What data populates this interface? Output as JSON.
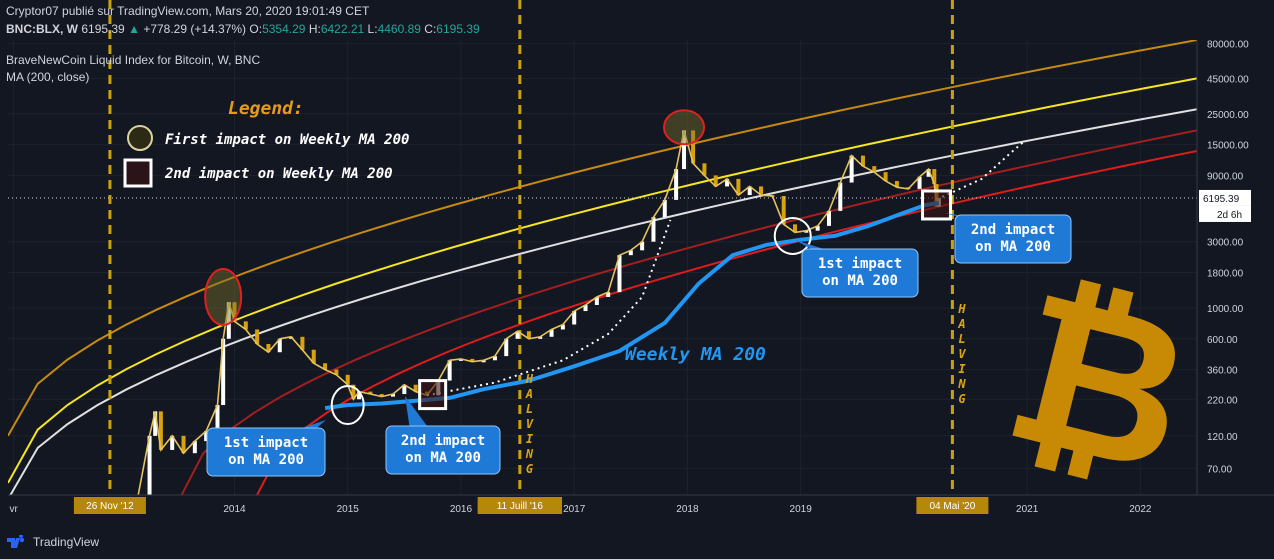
{
  "header": {
    "publish_line": "Cryptor07 publié sur TradingView.com, Mars 20, 2020 19:01:49 CET",
    "symbol": "BNC:BLX, W",
    "last": "6195.39",
    "change": "+778.29 (+14.37%)",
    "o_label": "O:",
    "o_val": "5354.29",
    "h_label": "H:",
    "h_val": "6422.21",
    "l_label": "L:",
    "l_val": "4460.89",
    "c_label": "C:",
    "c_val": "6195.39",
    "index_name": "BraveNewCoin Liquid Index for Bitcoin, W, BNC",
    "indicator": "MA (200, close)"
  },
  "legend": {
    "title": "Legend:",
    "first": "First impact on Weekly MA 200",
    "second": "2nd impact on Weekly MA 200"
  },
  "annotations": {
    "ma_label": "Weekly MA 200",
    "impact1a": [
      "1st impact",
      "on MA 200"
    ],
    "impact2a": [
      "2nd impact",
      "on MA 200"
    ],
    "impact1b": [
      "1st impact",
      "on MA 200"
    ],
    "impact2b": [
      "2nd impact",
      "on MA 200"
    ],
    "halving": "HALVING",
    "price_tag": "6195.39",
    "countdown": "2d 6h"
  },
  "footer": {
    "brand": "TradingView"
  },
  "colors": {
    "background": "#131722",
    "orange_band": "#c68a0f",
    "yellow_band": "#f5e61f",
    "white_band": "#e0e0e0",
    "darkred_band": "#a31f1f",
    "red_band": "#e01b1b",
    "ma200": "#2196f3",
    "halving_line": "#c9a10d",
    "bitcoin": "#c88a05",
    "callout": "#1e7ad6"
  },
  "chart_data": {
    "type": "line",
    "title": "BraveNewCoin Liquid Index for Bitcoin, W, BNC",
    "y_scale": "log",
    "ylim": [
      45,
      85000
    ],
    "y_ticks": [
      "80000.00",
      "45000.00",
      "25000.00",
      "15000.00",
      "9000.00",
      "3000.00",
      "1800.00",
      "1000.00",
      "600.00",
      "360.00",
      "220.00",
      "120.00",
      "70.00"
    ],
    "x_ticks": [
      {
        "label": "vr",
        "t": 2012.05
      },
      {
        "label": "2014",
        "t": 2014.0
      },
      {
        "label": "2015",
        "t": 2015.0
      },
      {
        "label": "2016",
        "t": 2016.0
      },
      {
        "label": "2017",
        "t": 2017.0
      },
      {
        "label": "2018",
        "t": 2018.0
      },
      {
        "label": "2019",
        "t": 2019.0
      },
      {
        "label": "2021",
        "t": 2021.0
      },
      {
        "label": "2022",
        "t": 2022.0
      }
    ],
    "x_range": [
      2012.0,
      2022.5
    ],
    "halvings": [
      {
        "label": "26 Nov '12",
        "t": 2012.9
      },
      {
        "label": "11 Juill '16",
        "t": 2016.52
      },
      {
        "label": "04 Mai '20",
        "t": 2020.34
      }
    ],
    "last_price": 6195.39,
    "series": [
      {
        "name": "BTC",
        "points": [
          [
            2013.05,
            35
          ],
          [
            2013.15,
            45
          ],
          [
            2013.25,
            120
          ],
          [
            2013.3,
            180
          ],
          [
            2013.35,
            95
          ],
          [
            2013.45,
            120
          ],
          [
            2013.55,
            90
          ],
          [
            2013.65,
            110
          ],
          [
            2013.75,
            130
          ],
          [
            2013.85,
            200
          ],
          [
            2013.9,
            600
          ],
          [
            2013.95,
            1100
          ],
          [
            2014.0,
            800
          ],
          [
            2014.1,
            700
          ],
          [
            2014.2,
            550
          ],
          [
            2014.3,
            480
          ],
          [
            2014.4,
            600
          ],
          [
            2014.5,
            620
          ],
          [
            2014.6,
            500
          ],
          [
            2014.7,
            400
          ],
          [
            2014.8,
            360
          ],
          [
            2014.9,
            330
          ],
          [
            2015.0,
            280
          ],
          [
            2015.05,
            220
          ],
          [
            2015.1,
            250
          ],
          [
            2015.2,
            240
          ],
          [
            2015.3,
            230
          ],
          [
            2015.4,
            240
          ],
          [
            2015.5,
            280
          ],
          [
            2015.6,
            250
          ],
          [
            2015.7,
            235
          ],
          [
            2015.8,
            300
          ],
          [
            2015.9,
            420
          ],
          [
            2016.0,
            430
          ],
          [
            2016.1,
            410
          ],
          [
            2016.2,
            420
          ],
          [
            2016.3,
            450
          ],
          [
            2016.4,
            600
          ],
          [
            2016.5,
            680
          ],
          [
            2016.6,
            600
          ],
          [
            2016.7,
            620
          ],
          [
            2016.8,
            700
          ],
          [
            2016.9,
            760
          ],
          [
            2017.0,
            950
          ],
          [
            2017.1,
            1050
          ],
          [
            2017.2,
            1200
          ],
          [
            2017.3,
            1300
          ],
          [
            2017.4,
            2400
          ],
          [
            2017.5,
            2600
          ],
          [
            2017.6,
            3000
          ],
          [
            2017.7,
            4500
          ],
          [
            2017.8,
            6000
          ],
          [
            2017.9,
            10000
          ],
          [
            2017.97,
            19000
          ],
          [
            2018.05,
            11000
          ],
          [
            2018.15,
            9000
          ],
          [
            2018.25,
            7500
          ],
          [
            2018.35,
            8500
          ],
          [
            2018.45,
            6500
          ],
          [
            2018.55,
            7500
          ],
          [
            2018.65,
            6500
          ],
          [
            2018.75,
            6400
          ],
          [
            2018.85,
            4000
          ],
          [
            2018.95,
            3500
          ],
          [
            2019.05,
            3600
          ],
          [
            2019.15,
            3900
          ],
          [
            2019.25,
            5000
          ],
          [
            2019.35,
            8000
          ],
          [
            2019.45,
            12500
          ],
          [
            2019.55,
            10500
          ],
          [
            2019.65,
            9500
          ],
          [
            2019.75,
            8200
          ],
          [
            2019.85,
            7400
          ],
          [
            2019.95,
            7200
          ],
          [
            2020.05,
            8800
          ],
          [
            2020.13,
            10000
          ],
          [
            2020.18,
            7800
          ],
          [
            2020.2,
            5354
          ],
          [
            2020.22,
            6195
          ]
        ]
      },
      {
        "name": "Weekly MA 200",
        "points": [
          [
            2014.8,
            190
          ],
          [
            2015.0,
            200
          ],
          [
            2015.3,
            205
          ],
          [
            2015.6,
            215
          ],
          [
            2015.9,
            225
          ],
          [
            2016.2,
            260
          ],
          [
            2016.6,
            300
          ],
          [
            2017.0,
            380
          ],
          [
            2017.4,
            490
          ],
          [
            2017.8,
            780
          ],
          [
            2018.1,
            1500
          ],
          [
            2018.4,
            2400
          ],
          [
            2018.7,
            2850
          ],
          [
            2019.0,
            3100
          ],
          [
            2019.3,
            3300
          ],
          [
            2019.6,
            3900
          ],
          [
            2019.9,
            4800
          ],
          [
            2020.1,
            5500
          ],
          [
            2020.22,
            5700
          ]
        ]
      },
      {
        "points": [
          [
            2012.0,
            120
          ],
          [
            2022.5,
            85000
          ]
        ]
      },
      {
        "points": [
          [
            2012.0,
            55
          ],
          [
            2022.5,
            45000
          ]
        ]
      },
      {
        "points": [
          [
            2012.0,
            42
          ],
          [
            2022.5,
            27000
          ]
        ]
      },
      {
        "points": [
          [
            2013.5,
            40
          ],
          [
            2022.5,
            19000
          ]
        ]
      },
      {
        "points": [
          [
            2014.2,
            45
          ],
          [
            2022.5,
            13500
          ]
        ]
      }
    ]
  }
}
